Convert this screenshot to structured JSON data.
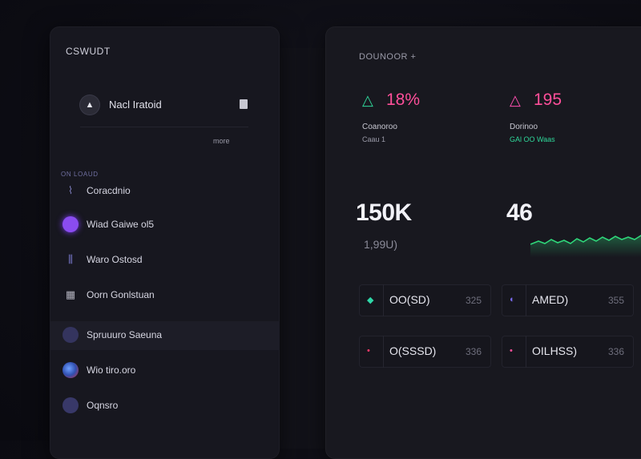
{
  "left_panel": {
    "title": "CSWUDT",
    "profile": {
      "avatar_glyph": "▲",
      "name": "Nacl Iratoid"
    },
    "more_link": "more",
    "section_label": "ON LOAUD",
    "nav_items": [
      {
        "label": "Coracdnio",
        "icon": "chart-icon",
        "glyph": "⌇",
        "color": "#7a7ab8"
      },
      {
        "label": "Wiad Gaiwe ol5",
        "icon": "orb-icon",
        "glyph": "●",
        "color": "#9a5cf0"
      },
      {
        "label": "Waro Ostosd",
        "icon": "bars-icon",
        "glyph": "⫼",
        "color": "#7a7ad0"
      },
      {
        "label": "Oorn Gonlstuan",
        "icon": "grid-icon",
        "glyph": "▦",
        "color": "#9a9aa8"
      },
      {
        "label": "Spruuuro Saeuna",
        "icon": "circle-icon",
        "glyph": "●",
        "color": "#3b3b6a"
      },
      {
        "label": "Wio tiro.oro",
        "icon": "globe-icon",
        "glyph": "◉",
        "color": "#4a78c8"
      },
      {
        "label": "Oqnsro",
        "icon": "circle-icon",
        "glyph": "●",
        "color": "#3d3d72"
      }
    ]
  },
  "right_panel": {
    "title": "DOUNOOR  +",
    "stats": [
      {
        "glyph": "△",
        "value": "18%",
        "value_color": "#ff4f9a",
        "glyph_color": "#2fd79a",
        "sub1": "Coanoroo",
        "sub2": "Caau  1"
      },
      {
        "glyph": "△",
        "value": "195",
        "value_color": "#ff4f9a",
        "glyph_color": "#ff4fb0",
        "sub1": "Dorinoo",
        "sub2": "GAl  OO  Waas"
      }
    ],
    "big_values": [
      {
        "value": "150K",
        "sub": "1,99U)"
      },
      {
        "value": "46"
      }
    ],
    "pills": [
      {
        "icon": "diamond-icon",
        "glyph": "◆",
        "glyph_color": "#2fd7a8",
        "label": "OO(SD)",
        "value": "325"
      },
      {
        "icon": "shield-icon",
        "glyph": "◐",
        "glyph_color": "#7a6cf0",
        "label": "AMED)",
        "value": "355"
      },
      {
        "icon": "dot-icon",
        "glyph": "•",
        "glyph_color": "#ff3a6a",
        "label": "O(SSSD)",
        "value": "336"
      },
      {
        "icon": "dot-icon",
        "glyph": "•",
        "glyph_color": "#ff4f9a",
        "label": "OILHSS)",
        "value": "336"
      }
    ]
  }
}
